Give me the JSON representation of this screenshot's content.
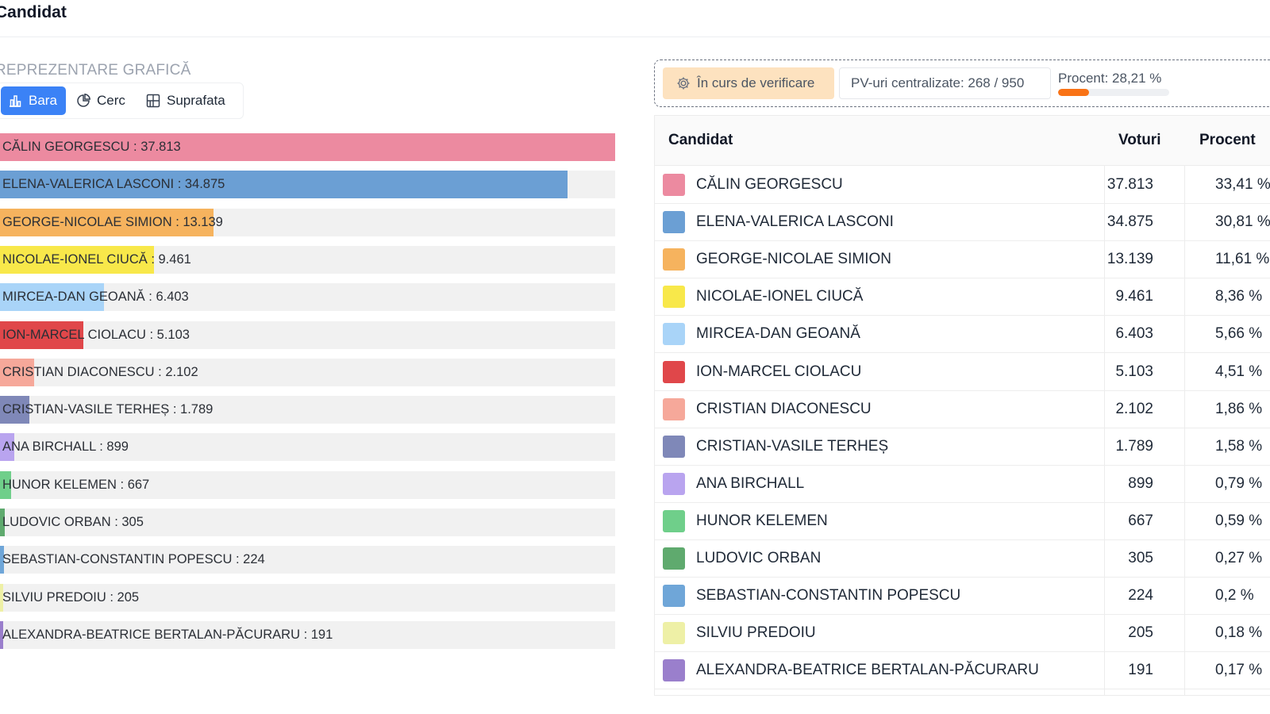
{
  "page": {
    "title": "Candidat"
  },
  "chart_section": {
    "label": "REPREZENTARE GRAFICĂ",
    "view_buttons": [
      {
        "label": "Bara",
        "icon": "bar-chart-icon",
        "active": true
      },
      {
        "label": "Cerc",
        "icon": "pie-chart-icon",
        "active": false
      },
      {
        "label": "Suprafata",
        "icon": "area-chart-icon",
        "active": false
      }
    ]
  },
  "status": {
    "badge": "În curs de verificare",
    "badge_icon": "gear-icon",
    "pv": "PV-uri centralizate: 268 / 950",
    "percent_label": "Procent: 28,21 %",
    "percent_value": 28.21
  },
  "table": {
    "headers": {
      "candidate": "Candidat",
      "votes": "Voturi",
      "percent": "Procent"
    }
  },
  "chart_data": {
    "type": "bar",
    "orientation": "horizontal",
    "categories": [
      "CĂLIN GEORGESCU",
      "ELENA-VALERICA LASCONI",
      "GEORGE-NICOLAE SIMION",
      "NICOLAE-IONEL CIUCĂ",
      "MIRCEA-DAN GEOANĂ",
      "ION-MARCEL CIOLACU",
      "CRISTIAN DIACONESCU",
      "CRISTIAN-VASILE TERHEȘ",
      "ANA BIRCHALL",
      "HUNOR KELEMEN",
      "LUDOVIC ORBAN",
      "SEBASTIAN-CONSTANTIN POPESCU",
      "SILVIU PREDOIU",
      "ALEXANDRA-BEATRICE BERTALAN-PĂCURARU"
    ],
    "values": [
      37813,
      34875,
      13139,
      9461,
      6403,
      5103,
      2102,
      1789,
      899,
      667,
      305,
      224,
      205,
      191
    ],
    "value_labels": [
      "37.813",
      "34.875",
      "13.139",
      "9.461",
      "6.403",
      "5.103",
      "2.102",
      "1.789",
      "899",
      "667",
      "305",
      "224",
      "205",
      "191"
    ],
    "percent_labels": [
      "33,41 %",
      "30,81 %",
      "11,61 %",
      "8,36 %",
      "5,66 %",
      "4,51 %",
      "1,86 %",
      "1,58 %",
      "0,79 %",
      "0,59 %",
      "0,27 %",
      "0,2 %",
      "0,18 %",
      "0,17 %"
    ],
    "colors": [
      "#ec8aa0",
      "#6b9fd4",
      "#f6b35e",
      "#f8e84a",
      "#a9d4f8",
      "#e0474a",
      "#f6a89a",
      "#7f88b8",
      "#b9a4ef",
      "#6fcf8a",
      "#5faa6e",
      "#6fa6d8",
      "#eef0a6",
      "#9a7fcc"
    ],
    "xlim": [
      0,
      37813
    ]
  }
}
